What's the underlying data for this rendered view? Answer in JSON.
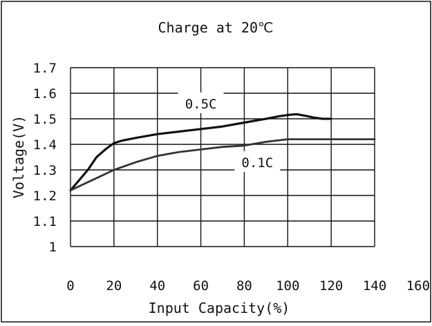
{
  "chart_data": {
    "type": "line",
    "title": "Charge at 20℃",
    "xlabel": "Input Capacity(%)",
    "ylabel": "Voltage(V)",
    "xlim": [
      0,
      160
    ],
    "ylim": [
      1.0,
      1.7
    ],
    "x_ticks": [
      0,
      20,
      40,
      60,
      80,
      100,
      120,
      140,
      160
    ],
    "y_ticks": [
      1.0,
      1.1,
      1.2,
      1.3,
      1.4,
      1.5,
      1.6,
      1.7
    ],
    "x_tick_labels": [
      "0",
      "20",
      "40",
      "60",
      "80",
      "100",
      "120",
      "140",
      "160"
    ],
    "y_tick_labels": [
      "1",
      "1.1",
      "1.2",
      "1.3",
      "1.4",
      "1.5",
      "1.6",
      "1.7"
    ],
    "grid": true,
    "series": [
      {
        "name": "0.5C",
        "color": "#111111",
        "x": [
          0,
          4,
          8,
          12,
          16,
          20,
          24,
          30,
          40,
          50,
          60,
          70,
          80,
          90,
          96,
          100,
          104,
          108,
          112,
          116,
          120
        ],
        "y": [
          1.22,
          1.26,
          1.3,
          1.35,
          1.38,
          1.405,
          1.415,
          1.425,
          1.44,
          1.45,
          1.46,
          1.47,
          1.485,
          1.5,
          1.51,
          1.515,
          1.518,
          1.512,
          1.505,
          1.5,
          1.5
        ]
      },
      {
        "name": "0.1C",
        "color": "#333333",
        "x": [
          0,
          10,
          20,
          30,
          40,
          50,
          60,
          70,
          80,
          90,
          100,
          110,
          120,
          130,
          140
        ],
        "y": [
          1.22,
          1.26,
          1.3,
          1.33,
          1.355,
          1.37,
          1.38,
          1.39,
          1.395,
          1.41,
          1.42,
          1.42,
          1.42,
          1.42,
          1.42
        ]
      }
    ],
    "annotations": [
      {
        "text": "0.5C",
        "x": 60,
        "y": 1.56
      },
      {
        "text": "0.1C",
        "x": 86,
        "y": 1.33
      }
    ]
  }
}
